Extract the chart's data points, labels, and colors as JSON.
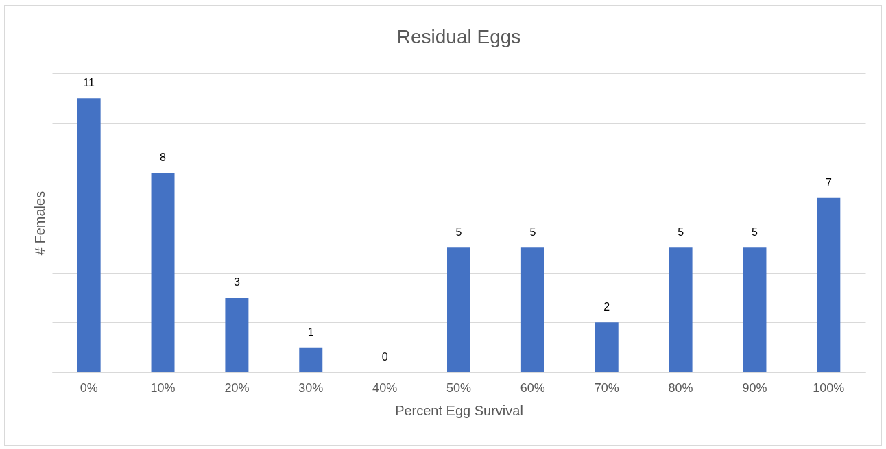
{
  "chart_data": {
    "type": "bar",
    "title": "Residual Eggs",
    "xlabel": "Percent Egg Survival",
    "ylabel": "# Females",
    "categories": [
      "0%",
      "10%",
      "20%",
      "30%",
      "40%",
      "50%",
      "60%",
      "70%",
      "80%",
      "90%",
      "100%"
    ],
    "values": [
      11,
      8,
      3,
      1,
      0,
      5,
      5,
      2,
      5,
      5,
      7
    ],
    "color": "#4472c4",
    "ylim": [
      0,
      12
    ],
    "yticks": [
      {
        "value": 0,
        "label": null
      },
      {
        "value": 2,
        "label": null
      },
      {
        "value": 4,
        "label": null
      },
      {
        "value": 6,
        "label": null
      },
      {
        "value": 8,
        "label": null
      },
      {
        "value": 10,
        "label": null
      },
      {
        "value": 12,
        "label": null
      }
    ],
    "tick_labels": "x",
    "grid": "y",
    "data_labels": true
  }
}
